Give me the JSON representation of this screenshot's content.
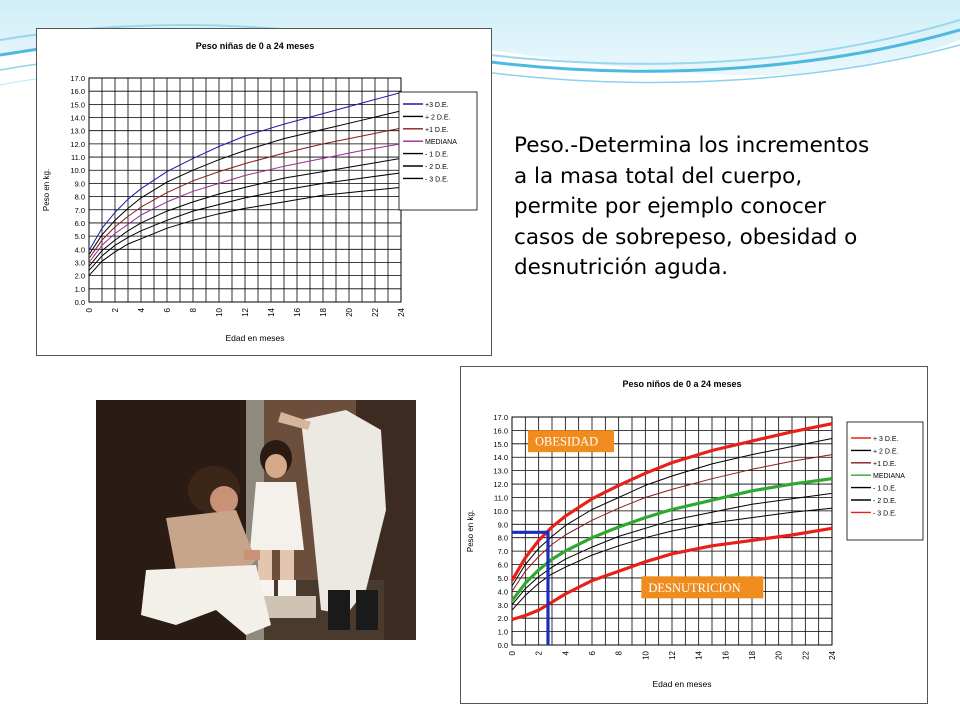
{
  "body_text": {
    "lines": [
      "Peso.-Determina los incrementos",
      "a la masa total del cuerpo,",
      "permite por ejemplo conocer",
      "casos de sobrepeso, obesidad o",
      "desnutrición aguda."
    ]
  },
  "photo": {
    "description": "photo-of-child-being-weighed"
  },
  "annotations": {
    "obesidad": "OBESIDAD",
    "desnutricion": "DESNUTRICION"
  },
  "colors": {
    "plus3": "#1a1aa8",
    "plus1": "#8b1a1a",
    "median": "#9a2a9a",
    "other": "#000000",
    "highlight_red": "#e8201a",
    "highlight_green": "#2fa82f",
    "highlight_blue": "#1a2fb8",
    "label_box": "#f08c1e",
    "label_text": "#ffffff",
    "plot_bg": "#ffffff",
    "grid": "#000000"
  },
  "chart_data": [
    {
      "type": "line",
      "title": "Peso niñas de 0 a 24 meses",
      "xlabel": "Edad en meses",
      "ylabel": "Peso en kg.",
      "xlim": [
        0,
        24
      ],
      "ylim": [
        0,
        17
      ],
      "x_ticks": [
        "0",
        "2",
        "4",
        "6",
        "8",
        "10",
        "12",
        "14",
        "16",
        "18",
        "20",
        "22",
        "24"
      ],
      "y_ticks": [
        "0.0",
        "1.0",
        "2.0",
        "3.0",
        "4.0",
        "5.0",
        "6.0",
        "7.0",
        "8.0",
        "9.0",
        "10.0",
        "11.0",
        "12.0",
        "13.0",
        "14.0",
        "15.0",
        "16.0",
        "17.0"
      ],
      "grid": true,
      "legend_position": "right",
      "x": [
        0,
        1,
        2,
        3,
        4,
        6,
        8,
        10,
        12,
        15,
        18,
        21,
        24
      ],
      "series": [
        {
          "name": "+3 D.E.",
          "color_key": "plus3",
          "values": [
            3.9,
            5.6,
            6.8,
            7.8,
            8.6,
            9.9,
            10.9,
            11.8,
            12.6,
            13.5,
            14.3,
            15.1,
            15.9
          ]
        },
        {
          "name": "+ 2 D.E.",
          "color_key": "other",
          "values": [
            3.6,
            5.1,
            6.2,
            7.1,
            7.9,
            9.1,
            10.0,
            10.8,
            11.5,
            12.4,
            13.1,
            13.8,
            14.5
          ]
        },
        {
          "name": "+1 D.E.",
          "color_key": "plus1",
          "values": [
            3.3,
            4.7,
            5.7,
            6.5,
            7.2,
            8.3,
            9.2,
            9.9,
            10.5,
            11.3,
            12.0,
            12.6,
            13.2
          ]
        },
        {
          "name": "MEDIANA",
          "color_key": "median",
          "values": [
            3.0,
            4.3,
            5.2,
            5.9,
            6.6,
            7.6,
            8.4,
            9.0,
            9.6,
            10.3,
            10.9,
            11.5,
            12.0
          ]
        },
        {
          "name": "- 1 D.E.",
          "color_key": "other",
          "values": [
            2.7,
            3.9,
            4.7,
            5.4,
            6.0,
            6.9,
            7.6,
            8.2,
            8.7,
            9.4,
            9.9,
            10.4,
            10.9
          ]
        },
        {
          "name": "- 2 D.E.",
          "color_key": "other",
          "values": [
            2.4,
            3.5,
            4.3,
            4.9,
            5.4,
            6.2,
            6.9,
            7.4,
            7.9,
            8.5,
            9.0,
            9.4,
            9.8
          ]
        },
        {
          "name": "- 3 D.E.",
          "color_key": "other",
          "values": [
            2.0,
            3.1,
            3.8,
            4.4,
            4.8,
            5.6,
            6.2,
            6.7,
            7.1,
            7.6,
            8.1,
            8.4,
            8.7
          ]
        }
      ]
    },
    {
      "type": "line",
      "title": "Peso niños de 0 a 24 meses",
      "xlabel": "Edad en meses",
      "ylabel": "Peso en kg.",
      "xlim": [
        0,
        24
      ],
      "ylim": [
        0,
        17
      ],
      "x_ticks": [
        "0",
        "2",
        "4",
        "6",
        "8",
        "10",
        "12",
        "14",
        "16",
        "18",
        "20",
        "22",
        "24"
      ],
      "y_ticks": [
        "0.0",
        "1.0",
        "2.0",
        "3.0",
        "4.0",
        "5.0",
        "6.0",
        "7.0",
        "8.0",
        "9.0",
        "10.0",
        "11.0",
        "12.0",
        "13.0",
        "14.0",
        "15.0",
        "16.0",
        "17.0"
      ],
      "grid": true,
      "legend_position": "right",
      "x": [
        0,
        1,
        2,
        3,
        4,
        6,
        8,
        10,
        12,
        15,
        18,
        21,
        24
      ],
      "series": [
        {
          "name": "+ 3 D.E.",
          "color_key": "highlight_red",
          "emphasis": true,
          "values": [
            4.8,
            6.5,
            7.8,
            8.8,
            9.6,
            10.9,
            11.9,
            12.8,
            13.6,
            14.5,
            15.2,
            15.9,
            16.5
          ]
        },
        {
          "name": "+ 2 D.E.",
          "color_key": "other",
          "values": [
            4.4,
            6.0,
            7.2,
            8.1,
            8.9,
            10.1,
            11.0,
            11.9,
            12.6,
            13.5,
            14.2,
            14.8,
            15.4
          ]
        },
        {
          "name": "+1 D.E.",
          "color_key": "plus1",
          "values": [
            4.0,
            5.5,
            6.6,
            7.5,
            8.2,
            9.3,
            10.2,
            11.0,
            11.6,
            12.4,
            13.1,
            13.7,
            14.2
          ]
        },
        {
          "name": "MEDIANA",
          "color_key": "highlight_green",
          "emphasis": true,
          "values": [
            3.3,
            4.6,
            5.6,
            6.4,
            7.0,
            8.0,
            8.8,
            9.5,
            10.1,
            10.8,
            11.5,
            12.0,
            12.4
          ]
        },
        {
          "name": "- 1 D.E.",
          "color_key": "other",
          "values": [
            3.0,
            4.2,
            5.1,
            5.8,
            6.4,
            7.3,
            8.1,
            8.7,
            9.3,
            9.9,
            10.5,
            10.9,
            11.3
          ]
        },
        {
          "name": "- 2 D.E.",
          "color_key": "other",
          "values": [
            2.6,
            3.7,
            4.6,
            5.3,
            5.8,
            6.7,
            7.4,
            8.0,
            8.5,
            9.1,
            9.5,
            9.9,
            10.2
          ]
        },
        {
          "name": "- 3 D.E.",
          "color_key": "highlight_red",
          "emphasis": true,
          "values": [
            1.9,
            2.2,
            2.6,
            3.2,
            3.8,
            4.8,
            5.5,
            6.2,
            6.8,
            7.4,
            7.8,
            8.2,
            8.7
          ]
        }
      ],
      "annotation_line": {
        "color_key": "highlight_blue",
        "points": [
          [
            0,
            8.4
          ],
          [
            2.7,
            8.4
          ],
          [
            2.7,
            0
          ]
        ]
      },
      "annotation_labels": [
        {
          "text_key": "obesidad",
          "anchor_x": 1.5,
          "anchor_y": 15.2
        },
        {
          "text_key": "desnutricion",
          "anchor_x": 10.0,
          "anchor_y": 4.3
        }
      ]
    }
  ]
}
